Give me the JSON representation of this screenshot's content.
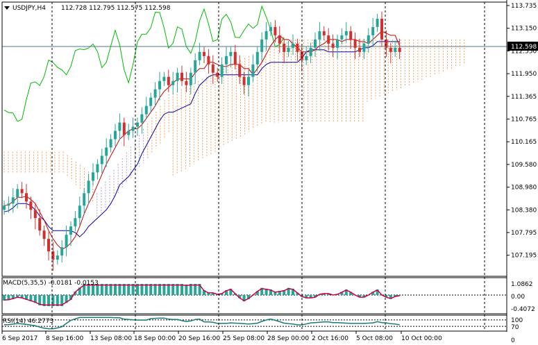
{
  "header": {
    "symbol_timeframe": "USDJPY,H4",
    "ohlc": "112.728 112.795 112.575 112.598"
  },
  "current_price": "112.598",
  "price_axis": [
    "113.735",
    "113.150",
    "112.550",
    "111.950",
    "111.365",
    "110.765",
    "110.165",
    "109.580",
    "108.980",
    "108.380",
    "107.795",
    "107.195"
  ],
  "time_axis": [
    "6 Sep 2017",
    "8 Sep 16:00",
    "13 Sep 08:00",
    "18 Sep 00:00",
    "20 Sep 16:00",
    "25 Sep 08:00",
    "28 Sep 00:00",
    "2 Oct 16:00",
    "5 Oct 08:00",
    "10 Oct 00:00"
  ],
  "macd": {
    "label": "MACD(5,35,5) -0.0181 -0.0153",
    "levels": [
      "1.0862",
      "0.00",
      "-0.4072"
    ]
  },
  "rsi": {
    "label": "RSI(14) 46.2773",
    "levels": [
      "100",
      "70",
      "30",
      "0"
    ]
  },
  "colors": {
    "bull": "#26a69a",
    "bear": "#d32f2f",
    "tenkan": "#cc0000",
    "kijun": "#0000aa",
    "chikou": "#00bb00",
    "cloud_up": "#f0a060",
    "cloud_down": "#b0a0d0",
    "grid": "#000000"
  },
  "icons": {
    "dropdown": "triangle-down-icon"
  },
  "chart_data": {
    "type": "candlestick",
    "price_range": [
      107.2,
      113.8
    ],
    "closes": [
      108.9,
      108.95,
      109.1,
      109.3,
      109.2,
      109.0,
      108.8,
      108.6,
      108.3,
      108.1,
      107.8,
      107.6,
      107.7,
      107.9,
      108.2,
      108.4,
      108.6,
      108.9,
      109.2,
      109.5,
      109.7,
      109.9,
      110.1,
      110.3,
      110.5,
      110.7,
      110.9,
      110.6,
      110.7,
      110.8,
      110.9,
      111.1,
      111.3,
      111.5,
      111.7,
      111.9,
      112.0,
      111.8,
      111.9,
      112.1,
      111.9,
      111.8,
      112.1,
      112.4,
      112.6,
      112.5,
      112.3,
      112.1,
      112.0,
      112.3,
      112.5,
      112.6,
      112.3,
      112.0,
      111.8,
      112.0,
      112.3,
      112.6,
      112.9,
      113.1,
      113.2,
      113.0,
      112.8,
      112.6,
      112.7,
      112.8,
      112.6,
      112.4,
      112.5,
      112.7,
      112.9,
      113.1,
      113.0,
      112.8,
      112.7,
      112.9,
      113.0,
      113.1,
      112.9,
      112.7,
      112.6,
      112.8,
      113.0,
      113.2,
      113.4,
      112.9,
      112.7,
      112.6,
      112.7,
      112.6
    ]
  }
}
